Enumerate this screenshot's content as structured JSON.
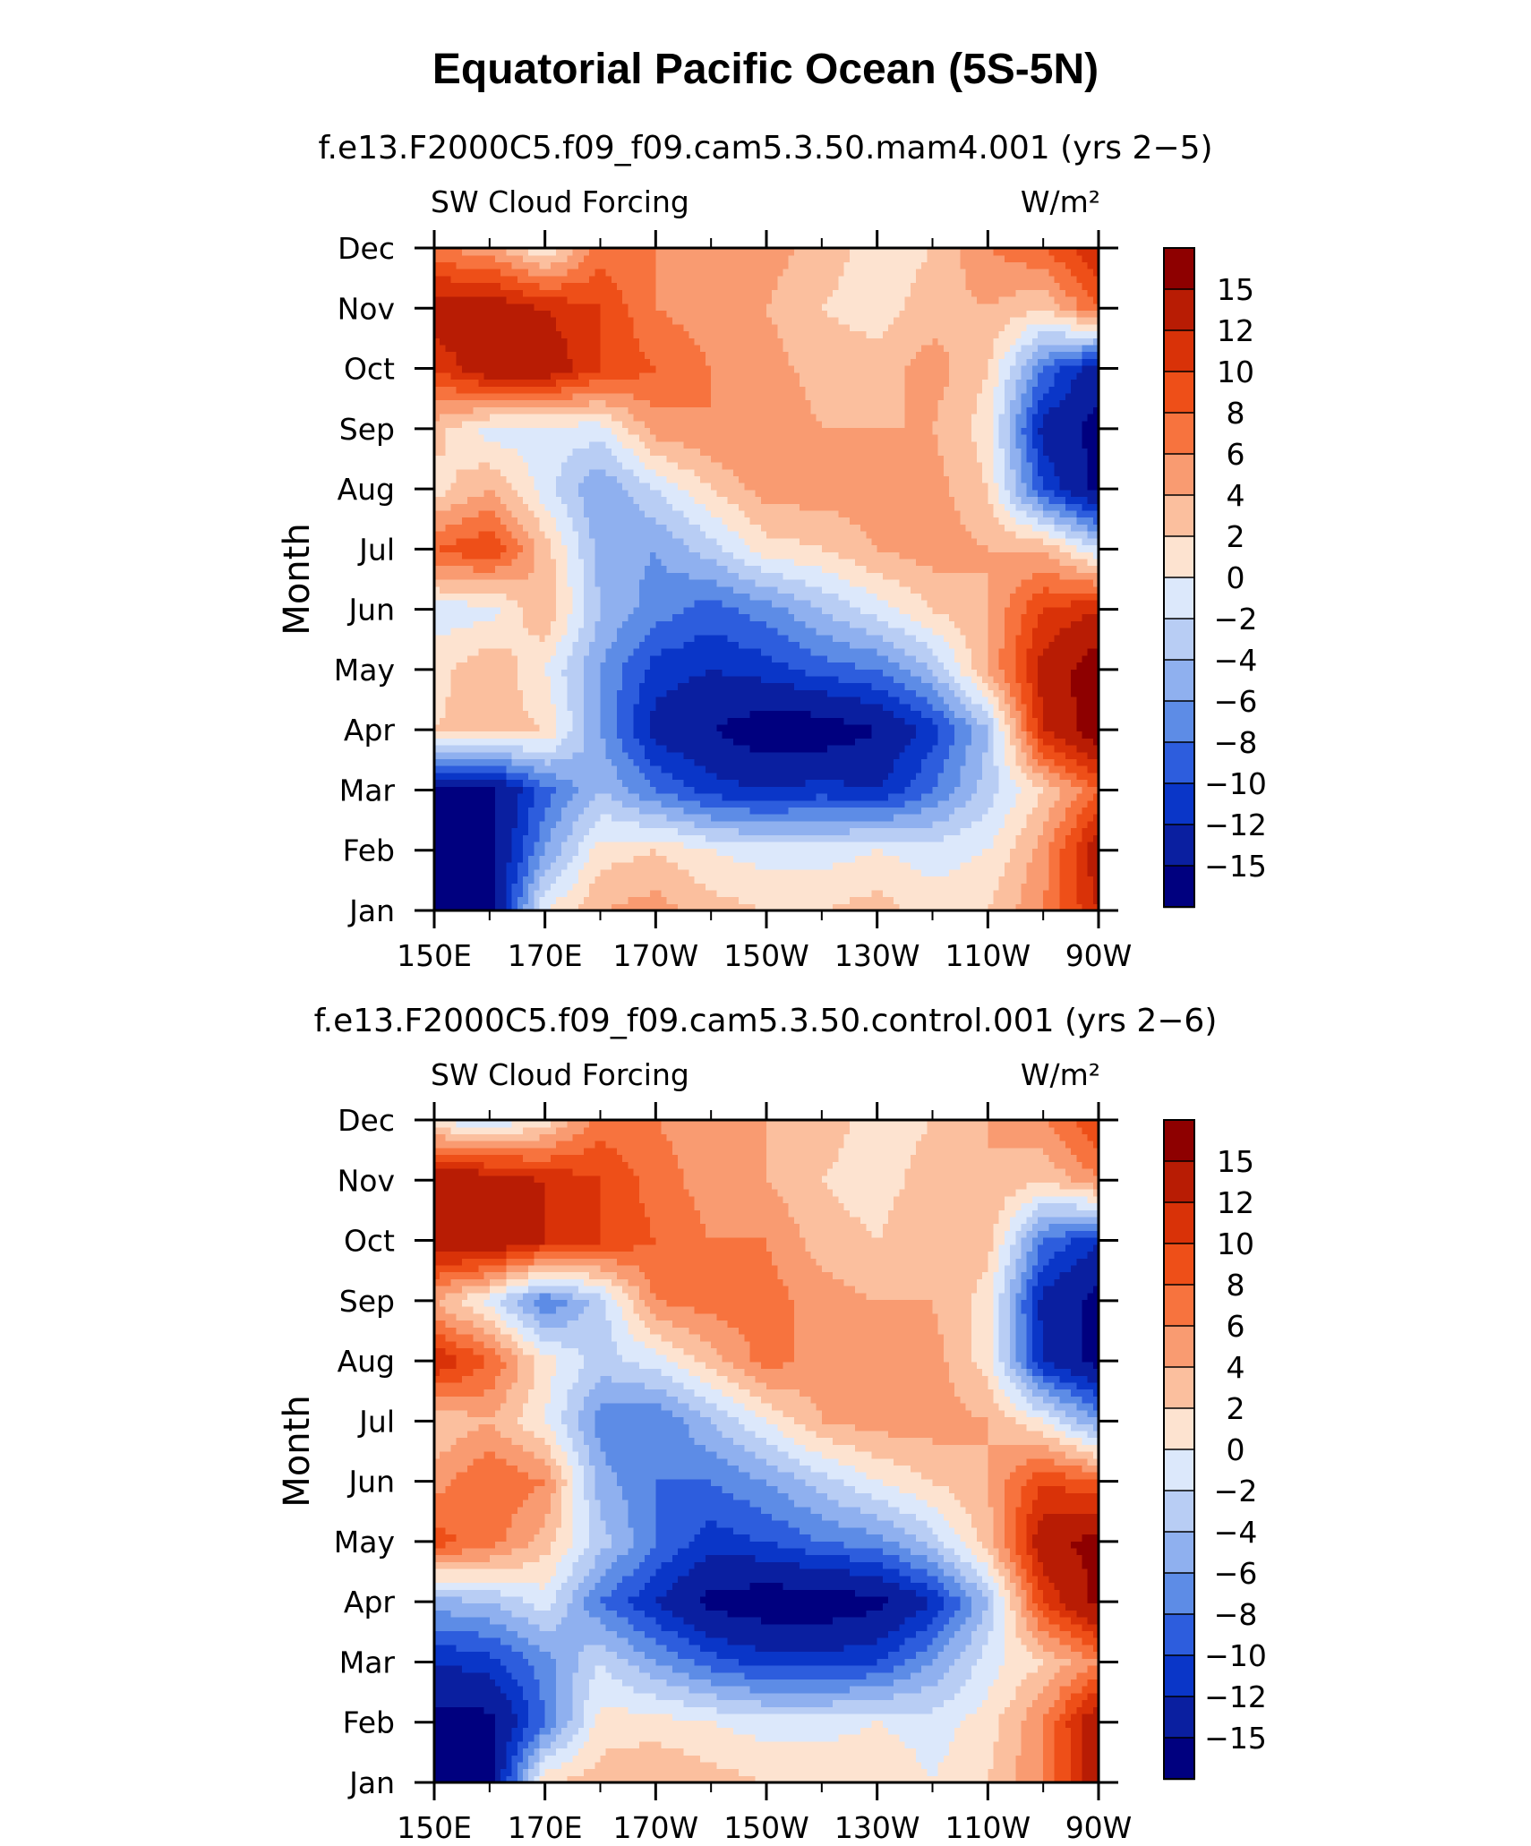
{
  "figure": {
    "title": "Equatorial Pacific Ocean (5S-5N)"
  },
  "color_scale": {
    "levels": [
      "15",
      "12",
      "10",
      "8",
      "6",
      "4",
      "2",
      "0",
      "−2",
      "−4",
      "−6",
      "−8",
      "−10",
      "−12",
      "−15"
    ],
    "colors": [
      "#8e0000",
      "#b81c04",
      "#d93208",
      "#ee4f18",
      "#f7733e",
      "#f99b71",
      "#fbbf9e",
      "#fde3d0",
      "#dce8fb",
      "#b8cdf4",
      "#8fb0ef",
      "#5d8ce6",
      "#2d5ddd",
      "#0a36c8",
      "#0a1fa0",
      "#00007f"
    ],
    "value_bins": [
      15,
      12,
      10,
      8,
      6,
      4,
      2,
      0,
      -2,
      -4,
      -6,
      -8,
      -10,
      -12,
      -15
    ]
  },
  "chart_data": [
    {
      "type": "heatmap",
      "subtitle": "f.e13.F2000C5.f09_f09.cam5.3.50.mam4.001 (yrs 2−5)",
      "left_label": "SW Cloud Forcing",
      "units": "W/m²",
      "ylabel": "Month",
      "xlabel": "",
      "x_ticks": [
        "150E",
        "170E",
        "170W",
        "150W",
        "130W",
        "110W",
        "90W"
      ],
      "y_ticks": [
        "Jan",
        "Feb",
        "Mar",
        "Apr",
        "May",
        "Jun",
        "Jul",
        "Aug",
        "Sep",
        "Oct",
        "Nov",
        "Dec"
      ],
      "xlim": [
        150,
        270
      ],
      "months": [
        "Jan",
        "Feb",
        "Mar",
        "Apr",
        "May",
        "Jun",
        "Jul",
        "Aug",
        "Sep",
        "Oct",
        "Nov",
        "Dec"
      ],
      "lon": [
        150,
        160,
        170,
        180,
        190,
        200,
        210,
        220,
        230,
        240,
        250,
        260,
        270
      ],
      "values": [
        [
          -16,
          -16,
          0,
          4,
          5,
          3,
          2,
          2,
          3,
          1,
          2,
          6,
          12
        ],
        [
          -16,
          -16,
          -6,
          1,
          2,
          0,
          -1,
          -1,
          0,
          -1,
          0,
          5,
          14
        ],
        [
          -16,
          -16,
          -9,
          -4,
          -8,
          -11,
          -12,
          -11,
          -12,
          -8,
          -3,
          2,
          8
        ],
        [
          2,
          3,
          2,
          -6,
          -13,
          -15,
          -17,
          -17,
          -15,
          -11,
          -4,
          12,
          17
        ],
        [
          1,
          4,
          0,
          -6,
          -11,
          -12,
          -11,
          -9,
          -8,
          -4,
          4,
          13,
          17
        ],
        [
          -1,
          -1,
          4,
          -4,
          -7,
          -9,
          -7,
          -4,
          -1,
          2,
          4,
          10,
          12
        ],
        [
          8,
          10,
          3,
          -5,
          -6,
          -3,
          1,
          2,
          4,
          5,
          4,
          4,
          -2
        ],
        [
          1,
          4,
          -1,
          -6,
          -2,
          2,
          5,
          5,
          5,
          5,
          2,
          -10,
          -16
        ],
        [
          3,
          -1,
          -1,
          -1,
          5,
          6,
          6,
          4,
          4,
          4,
          1,
          -13,
          -16
        ],
        [
          10,
          14,
          14,
          10,
          8,
          6,
          5,
          3,
          3,
          5,
          2,
          -8,
          -14
        ],
        [
          14,
          14,
          12,
          10,
          6,
          5,
          4,
          2,
          1,
          3,
          4,
          2,
          8
        ],
        [
          6,
          5,
          0,
          7,
          6,
          5,
          5,
          3,
          1,
          2,
          6,
          8,
          12
        ]
      ]
    },
    {
      "type": "heatmap",
      "subtitle": "f.e13.F2000C5.f09_f09.cam5.3.50.control.001 (yrs 2−6)",
      "left_label": "SW Cloud Forcing",
      "units": "W/m²",
      "ylabel": "Month",
      "xlabel": "",
      "x_ticks": [
        "150E",
        "170E",
        "170W",
        "150W",
        "130W",
        "110W",
        "90W"
      ],
      "y_ticks": [
        "Jan",
        "Feb",
        "Mar",
        "Apr",
        "May",
        "Jun",
        "Jul",
        "Aug",
        "Sep",
        "Oct",
        "Nov",
        "Dec"
      ],
      "xlim": [
        150,
        270
      ],
      "months": [
        "Jan",
        "Feb",
        "Mar",
        "Apr",
        "May",
        "Jun",
        "Jul",
        "Aug",
        "Sep",
        "Oct",
        "Nov",
        "Dec"
      ],
      "lon": [
        150,
        160,
        170,
        180,
        190,
        200,
        210,
        220,
        230,
        240,
        250,
        260,
        270
      ],
      "values": [
        [
          -16,
          -16,
          2,
          3,
          4,
          3,
          2,
          2,
          2,
          0,
          2,
          6,
          14
        ],
        [
          -16,
          -16,
          -8,
          1,
          1,
          0,
          -1,
          -1,
          0,
          -1,
          1,
          6,
          15
        ],
        [
          -12,
          -11,
          -7,
          -2,
          -6,
          -9,
          -11,
          -11,
          -10,
          -6,
          -1,
          2,
          6
        ],
        [
          -5,
          -4,
          -1,
          -8,
          -12,
          -16,
          -17,
          -17,
          -16,
          -12,
          -4,
          10,
          16
        ],
        [
          9,
          7,
          3,
          -3,
          -8,
          -11,
          -10,
          -8,
          -7,
          -3,
          3,
          14,
          16
        ],
        [
          5,
          8,
          6,
          -5,
          -8,
          -8,
          -6,
          -3,
          0,
          2,
          4,
          10,
          8
        ],
        [
          2,
          4,
          0,
          -7,
          -8,
          -4,
          0,
          4,
          5,
          5,
          4,
          0,
          -6
        ],
        [
          12,
          8,
          1,
          -3,
          -1,
          3,
          7,
          5,
          5,
          5,
          1,
          -12,
          -16
        ],
        [
          4,
          -1,
          -8,
          -3,
          6,
          7,
          7,
          5,
          4,
          4,
          1,
          -13,
          -16
        ],
        [
          14,
          15,
          12,
          10,
          8,
          6,
          6,
          3,
          2,
          4,
          3,
          -8,
          -12
        ],
        [
          15,
          14,
          12,
          10,
          7,
          5,
          4,
          2,
          1,
          3,
          4,
          2,
          6
        ],
        [
          0,
          -2,
          1,
          7,
          6,
          5,
          4,
          3,
          1,
          2,
          4,
          6,
          10
        ]
      ]
    }
  ]
}
